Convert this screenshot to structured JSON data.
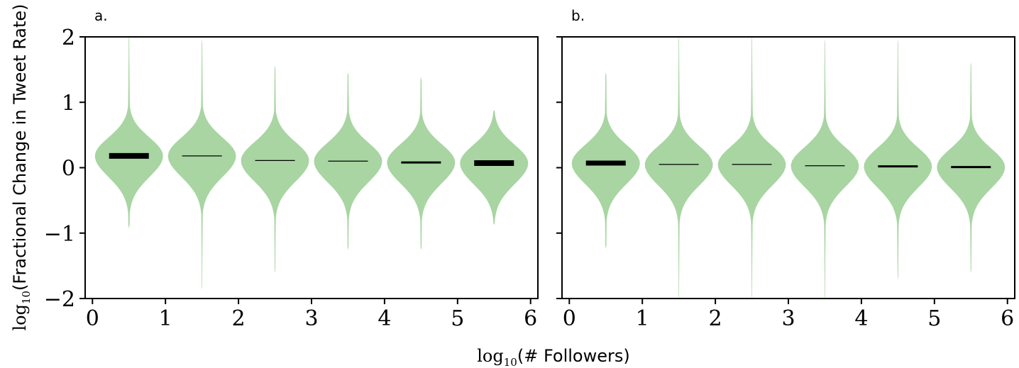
{
  "chart_data": [
    {
      "type": "violin",
      "panel_label": "a.",
      "xlim": [
        -0.1,
        6.1
      ],
      "ylim": [
        -2,
        2
      ],
      "xticks": [
        0,
        1,
        2,
        3,
        4,
        5,
        6
      ],
      "yticks": [
        -2,
        -1,
        0,
        1,
        2
      ],
      "ytick_labels": [
        "−2",
        "−1",
        "0",
        "1",
        "2"
      ],
      "xlabel": "log10(# Followers)",
      "ylabel": "log10(Fractional Change in Tweet Rate)",
      "violins": [
        {
          "x": 0.5,
          "min": -0.92,
          "max": 2.0,
          "median": 0.18
        },
        {
          "x": 1.5,
          "min": -1.85,
          "max": 1.95,
          "median": 0.18
        },
        {
          "x": 2.5,
          "min": -1.6,
          "max": 1.55,
          "median": 0.11
        },
        {
          "x": 3.5,
          "min": -1.25,
          "max": 1.45,
          "median": 0.1
        },
        {
          "x": 4.5,
          "min": -1.25,
          "max": 1.38,
          "median": 0.08
        },
        {
          "x": 5.5,
          "min": -0.87,
          "max": 0.88,
          "median": 0.07
        }
      ],
      "violin_color": "#a8d5a2",
      "median_color": "#000000"
    },
    {
      "type": "violin",
      "panel_label": "b.",
      "xlim": [
        -0.1,
        6.1
      ],
      "ylim": [
        -2,
        2
      ],
      "xticks": [
        0,
        1,
        2,
        3,
        4,
        5,
        6
      ],
      "yticks": [
        -2,
        -1,
        0,
        1,
        2
      ],
      "violins": [
        {
          "x": 0.5,
          "min": -1.23,
          "max": 1.45,
          "median": 0.07
        },
        {
          "x": 1.5,
          "min": -2.0,
          "max": 2.0,
          "median": 0.05
        },
        {
          "x": 2.5,
          "min": -2.0,
          "max": 2.0,
          "median": 0.05
        },
        {
          "x": 3.5,
          "min": -2.0,
          "max": 1.95,
          "median": 0.03
        },
        {
          "x": 4.5,
          "min": -1.7,
          "max": 1.95,
          "median": 0.02
        },
        {
          "x": 5.5,
          "min": -1.6,
          "max": 1.6,
          "median": 0.01
        }
      ],
      "violin_color": "#a8d5a2",
      "median_color": "#000000"
    }
  ]
}
